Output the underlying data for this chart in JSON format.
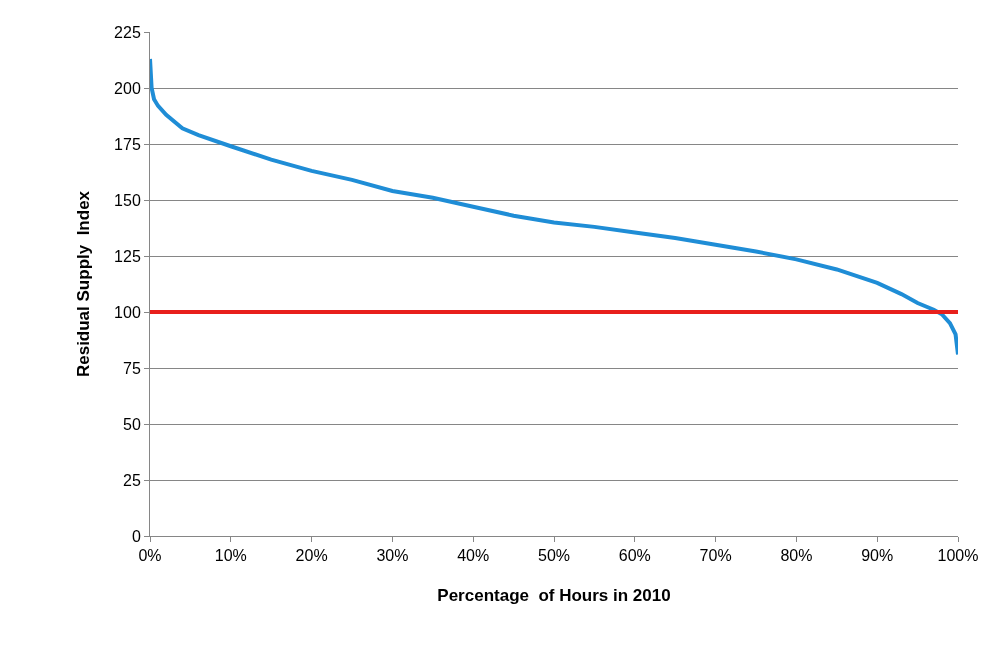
{
  "chart_data": {
    "type": "line",
    "xlabel": "Percentage  of Hours in 2010",
    "ylabel": "Residual Supply  Index",
    "x": [
      0,
      0.2,
      0.5,
      1,
      2,
      4,
      6,
      10,
      15,
      20,
      25,
      30,
      35,
      40,
      45,
      50,
      55,
      60,
      65,
      70,
      75,
      80,
      85,
      90,
      93,
      95,
      97,
      98,
      99,
      99.7,
      100
    ],
    "series": [
      {
        "color": "#1f8dd6",
        "values": [
          213,
          200,
          195,
          192,
          188,
          182,
          179,
          174,
          168,
          163,
          159,
          154,
          151,
          147,
          143,
          140,
          138,
          135.5,
          133,
          130,
          127,
          123.5,
          119,
          113,
          108,
          104,
          101,
          99,
          95,
          90,
          81
        ]
      }
    ],
    "xlim": [
      0,
      100
    ],
    "xticks": [
      {
        "value": 0,
        "label": "0%"
      },
      {
        "value": 10,
        "label": "10%"
      },
      {
        "value": 20,
        "label": "20%"
      },
      {
        "value": 30,
        "label": "30%"
      },
      {
        "value": 40,
        "label": "40%"
      },
      {
        "value": 50,
        "label": "50%"
      },
      {
        "value": 60,
        "label": "60%"
      },
      {
        "value": 70,
        "label": "70%"
      },
      {
        "value": 80,
        "label": "80%"
      },
      {
        "value": 90,
        "label": "90%"
      },
      {
        "value": 100,
        "label": "100%"
      }
    ],
    "ylim": [
      0,
      225
    ],
    "yticks": [
      0,
      25,
      50,
      75,
      100,
      125,
      150,
      175,
      200,
      225
    ],
    "ref_lines": [
      {
        "axis": "y",
        "value": 100,
        "color": "#e8201c"
      }
    ],
    "grid": "y",
    "marker": "none",
    "line_style": "solid"
  }
}
